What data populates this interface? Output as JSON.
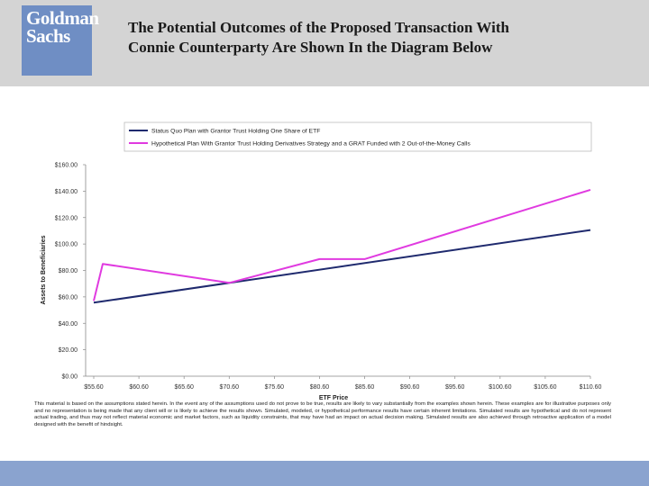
{
  "header": {
    "logo_line1": "Goldman",
    "logo_line2": "Sachs",
    "title_line1": "The Potential Outcomes of the Proposed Transaction With",
    "title_line2": "Connie Counterparty Are Shown In the Diagram Below"
  },
  "colors": {
    "header_bg": "#d4d4d4",
    "logo_bg": "#6f8ec4",
    "footer_bar": "#8aa3cf",
    "series_status_quo": "#1f2a6e",
    "series_hypothetical": "#e03ae0"
  },
  "chart_data": {
    "type": "line",
    "xlabel": "ETF Price",
    "ylabel": "Assets to Beneficiaries",
    "xlim": [
      55.6,
      110.6
    ],
    "ylim": [
      0,
      160
    ],
    "x_ticks": [
      "$55.60",
      "$60.60",
      "$65.60",
      "$70.60",
      "$75.60",
      "$80.60",
      "$85.60",
      "$90.60",
      "$95.60",
      "$100.60",
      "$105.60",
      "$110.60"
    ],
    "y_ticks": [
      "$0.00",
      "$20.00",
      "$40.00",
      "$60.00",
      "$80.00",
      "$100.00",
      "$120.00",
      "$140.00",
      "$160.00"
    ],
    "grid": false,
    "legend_position": "top",
    "series": [
      {
        "name": "Status Quo Plan with Grantor Trust Holding One Share of ETF",
        "x": [
          55.6,
          110.6
        ],
        "y": [
          55.6,
          110.6
        ]
      },
      {
        "name": "Hypothetical Plan With Grantor Trust Holding Derivatives Strategy and a GRAT Funded with 2 Out-of-the-Money Calls",
        "x": [
          55.6,
          56.6,
          70.6,
          80.6,
          85.6,
          110.6
        ],
        "y": [
          57,
          85,
          70.6,
          88.6,
          88.6,
          141
        ]
      }
    ]
  },
  "disclaimer": "This material is based on the assumptions stated herein. In the event any of the assumptions used do not prove to be true, results are likely to vary substantially from the examples shown herein. These examples are for illustrative purposes only and no representation is being made that any client will or is likely to achieve the results shown. Simulated, modeled, or hypothetical performance results have certain inherent limitations. Simulated results are hypothetical and do not represent actual trading, and thus may not reflect material economic and market factors, such as liquidity constraints, that may have had an impact on actual decision making. Simulated results are also achieved through retroactive application of a model designed with the benefit of hindsight."
}
